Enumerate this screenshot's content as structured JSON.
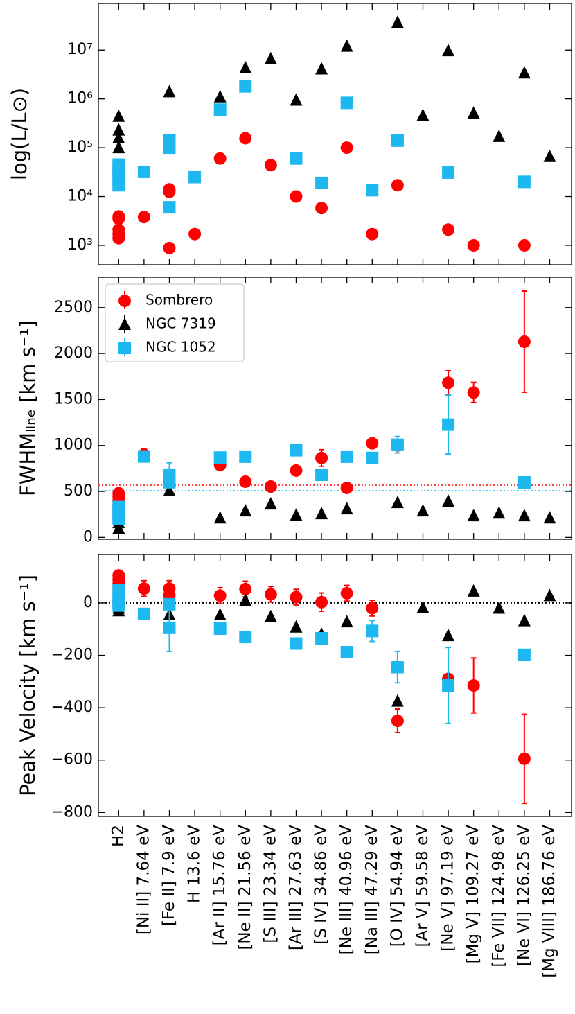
{
  "chart_data": [
    {
      "type": "scatter",
      "ylabel": "log(L/L⊙)",
      "yscale": "log",
      "ylim": [
        400,
        90000000
      ],
      "yticks": [
        {
          "value": 1000,
          "label": "10³"
        },
        {
          "value": 10000,
          "label": "10⁴"
        },
        {
          "value": 100000,
          "label": "10⁵"
        },
        {
          "value": 1000000,
          "label": "10⁶"
        },
        {
          "value": 10000000,
          "label": "10⁷"
        }
      ],
      "series": [
        {
          "color": "#ff0000",
          "marker": "circle",
          "values": [
            [
              3900,
              3500,
              2100,
              1700,
              1400
            ],
            3800,
            [
              14000,
              12500,
              880
            ],
            1700,
            60000,
            156000,
            44000,
            10000,
            5800,
            100000,
            1700,
            17000,
            null,
            2100,
            1000,
            null,
            1000,
            null
          ]
        },
        {
          "color": "#000000",
          "marker": "triangle",
          "values": [
            [
              440000,
              230000,
              160000,
              100000
            ],
            null,
            1400000,
            null,
            1100000,
            4300000,
            6600000,
            940000,
            4100000,
            12000000,
            null,
            37000000,
            460000,
            9700000,
            510000,
            170000,
            3400000,
            66000
          ]
        },
        {
          "color": "#1eb8f0",
          "marker": "square",
          "values": [
            [
              45000,
              35000,
              28000,
              22000,
              17000
            ],
            32000,
            [
              140000,
              100000,
              6000
            ],
            25000,
            600000,
            1800000,
            null,
            60000,
            19000,
            830000,
            13500,
            140000,
            null,
            31000,
            null,
            null,
            20000,
            null
          ]
        }
      ]
    },
    {
      "type": "scatter",
      "ylabel": "FWHMₗᵢₙₑ [km s⁻¹]",
      "ylim": [
        -20,
        2830
      ],
      "yticks": [
        0,
        500,
        1000,
        1500,
        2000,
        2500
      ],
      "hlines": [
        {
          "value": 568,
          "color": "#ff4040"
        },
        {
          "value": 508,
          "color": "#40c8f0"
        }
      ],
      "legend": "upper left",
      "series": [
        {
          "name": "Sombrero",
          "color": "#ff0000",
          "marker": "circle",
          "values": [
            [
              480,
              440,
              400,
              340
            ],
            900,
            610,
            null,
            788,
            606,
            553,
            727,
            864,
            538,
            1023,
            1000,
            null,
            1682,
            1576,
            null,
            2129,
            null
          ],
          "errors": [
            null,
            60,
            null,
            null,
            null,
            null,
            null,
            null,
            90,
            null,
            null,
            null,
            null,
            130,
            110,
            null,
            550,
            null
          ]
        },
        {
          "name": "NGC 7319",
          "color": "#000000",
          "marker": "triangle",
          "values": [
            [
              160,
              100
            ],
            null,
            508,
            null,
            212,
            288,
            364,
            242,
            258,
            311,
            null,
            379,
            288,
            394,
            235,
            265,
            235,
            212
          ]
        },
        {
          "name": "NGC 1052",
          "color": "#1eb8f0",
          "marker": "square",
          "values": [
            [
              330,
              280,
              230,
              200
            ],
            880,
            [
              682,
              600
            ],
            null,
            868,
            878,
            null,
            948,
            681,
            878,
            864,
            1008,
            null,
            1227,
            null,
            null,
            598,
            null
          ],
          "errors": [
            null,
            null,
            [
              130,
              null
            ],
            null,
            null,
            null,
            null,
            null,
            null,
            null,
            null,
            90,
            null,
            320,
            null,
            null,
            null,
            null
          ]
        }
      ]
    },
    {
      "type": "scatter",
      "ylabel": "Peak Velocity [km s⁻¹]",
      "ylim": [
        -815,
        185
      ],
      "yticks": [
        {
          "value": -800,
          "label": "−800"
        },
        {
          "value": -600,
          "label": "−600"
        },
        {
          "value": -400,
          "label": "−400"
        },
        {
          "value": -200,
          "label": "−200"
        },
        0
      ],
      "hlines": [
        {
          "value": 0,
          "color": "#000000"
        }
      ],
      "categories": [
        "H2",
        "[Ni II] 7.64 eV",
        "[Fe II] 7.9 eV",
        "H 13.6 eV",
        "[Ar II] 15.76 eV",
        "[Ne II] 21.56 eV",
        "[S III] 23.34 eV",
        "[Ar III] 27.63 eV",
        "[S IV] 34.86 eV",
        "[Ne III] 40.96 eV",
        "[Na III] 47.29 eV",
        "[O IV] 54.94 eV",
        "[Ar V] 59.58 eV",
        "[Ne V] 97.19 eV",
        "[Mg V] 109.27 eV",
        "[Fe VII] 124.98 eV",
        "[Ne VI] 126.25 eV",
        "[Mg VIII] 186.76 eV"
      ],
      "series": [
        {
          "color": "#ff0000",
          "marker": "circle",
          "values": [
            [
              105,
              90,
              75,
              60,
              40
            ],
            55,
            [
              55,
              30
            ],
            null,
            28,
            53,
            33,
            22,
            3,
            37,
            -20,
            -450,
            null,
            -290,
            -315,
            null,
            -595,
            null
          ],
          "errors": [
            null,
            30,
            [
              30,
              null
            ],
            null,
            30,
            30,
            30,
            30,
            35,
            30,
            30,
            45,
            null,
            null,
            105,
            null,
            170,
            null
          ]
        },
        {
          "color": "#000000",
          "marker": "triangle",
          "values": [
            [
              30,
              -20,
              -30
            ],
            null,
            -45,
            null,
            -45,
            10,
            -52,
            -92,
            -120,
            -72,
            null,
            -375,
            -18,
            -125,
            45,
            -20,
            -68,
            28
          ]
        },
        {
          "color": "#1eb8f0",
          "marker": "square",
          "values": [
            [
              50,
              20,
              0,
              -10
            ],
            -42,
            [
              -5,
              -95
            ],
            null,
            -98,
            -130,
            null,
            -155,
            -135,
            -188,
            -107,
            -245,
            null,
            -315,
            null,
            null,
            -198,
            null
          ],
          "errors": [
            null,
            null,
            [
              null,
              90
            ],
            null,
            null,
            null,
            null,
            null,
            null,
            null,
            40,
            60,
            null,
            145,
            null,
            null,
            null,
            null
          ]
        }
      ]
    }
  ]
}
